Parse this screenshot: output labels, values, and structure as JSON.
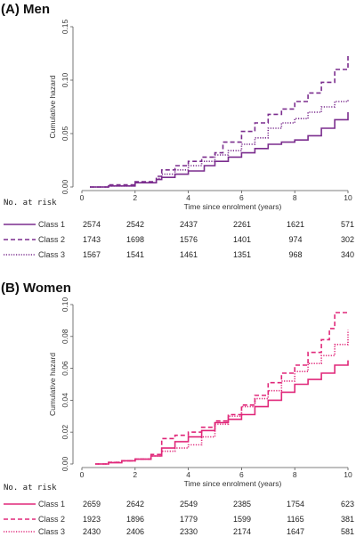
{
  "chart_data": [
    {
      "type": "line",
      "title": "(A) Men",
      "xlabel": "Time since enrolment (years)",
      "ylabel": "Cumulative hazard",
      "xlim": [
        0,
        10
      ],
      "ylim": [
        0,
        0.15
      ],
      "xticks": [
        "0",
        "2",
        "4",
        "6",
        "8",
        "10"
      ],
      "yticks": [
        "0.00",
        "0.05",
        "0.10",
        "0.15"
      ],
      "series": [
        {
          "name": "Class 1",
          "style": "solid",
          "color": "#7b2d8e",
          "points": [
            [
              0.3,
              0.0
            ],
            [
              1,
              0.001
            ],
            [
              2,
              0.004
            ],
            [
              2.8,
              0.007
            ],
            [
              3,
              0.009
            ],
            [
              3.5,
              0.012
            ],
            [
              4,
              0.015
            ],
            [
              4.6,
              0.02
            ],
            [
              5,
              0.024
            ],
            [
              5.5,
              0.028
            ],
            [
              6,
              0.032
            ],
            [
              6.5,
              0.036
            ],
            [
              7,
              0.04
            ],
            [
              7.5,
              0.042
            ],
            [
              8,
              0.044
            ],
            [
              8.5,
              0.048
            ],
            [
              9,
              0.055
            ],
            [
              9.5,
              0.063
            ],
            [
              10,
              0.07
            ]
          ]
        },
        {
          "name": "Class 2",
          "style": "dashed",
          "color": "#7b2d8e",
          "points": [
            [
              0.3,
              0.0
            ],
            [
              1,
              0.002
            ],
            [
              2,
              0.005
            ],
            [
              2.8,
              0.01
            ],
            [
              3,
              0.016
            ],
            [
              3.5,
              0.02
            ],
            [
              4,
              0.024
            ],
            [
              4.5,
              0.028
            ],
            [
              5,
              0.032
            ],
            [
              5.3,
              0.042
            ],
            [
              6,
              0.052
            ],
            [
              6.5,
              0.06
            ],
            [
              7,
              0.068
            ],
            [
              7.5,
              0.073
            ],
            [
              8,
              0.08
            ],
            [
              8.5,
              0.088
            ],
            [
              9,
              0.098
            ],
            [
              9.5,
              0.11
            ],
            [
              10,
              0.123
            ]
          ]
        },
        {
          "name": "Class 3",
          "style": "dotted",
          "color": "#7b2d8e",
          "points": [
            [
              0.3,
              0.0
            ],
            [
              1,
              0.001
            ],
            [
              2,
              0.004
            ],
            [
              2.8,
              0.008
            ],
            [
              3,
              0.012
            ],
            [
              3.5,
              0.016
            ],
            [
              4,
              0.02
            ],
            [
              4.5,
              0.024
            ],
            [
              5,
              0.03
            ],
            [
              5.5,
              0.034
            ],
            [
              6,
              0.04
            ],
            [
              6.5,
              0.046
            ],
            [
              7,
              0.055
            ],
            [
              7.5,
              0.06
            ],
            [
              8,
              0.064
            ],
            [
              8.5,
              0.07
            ],
            [
              9,
              0.075
            ],
            [
              9.5,
              0.08
            ],
            [
              10,
              0.082
            ]
          ]
        }
      ],
      "risk_table": {
        "header": "No. at risk",
        "rows": [
          {
            "label": "Class 1",
            "style": "solid",
            "values": [
              "2574",
              "2542",
              "2437",
              "2261",
              "1621",
              "571"
            ]
          },
          {
            "label": "Class 2",
            "style": "dashed",
            "values": [
              "1743",
              "1698",
              "1576",
              "1401",
              "974",
              "302"
            ]
          },
          {
            "label": "Class 3",
            "style": "dotted",
            "values": [
              "1567",
              "1541",
              "1461",
              "1351",
              "968",
              "340"
            ]
          }
        ]
      }
    },
    {
      "type": "line",
      "title": "(B) Women",
      "xlabel": "Time since enrolment (years)",
      "ylabel": "Cumulative hazard",
      "xlim": [
        0,
        10
      ],
      "ylim": [
        0,
        0.1
      ],
      "xticks": [
        "0",
        "2",
        "4",
        "6",
        "8",
        "10"
      ],
      "yticks": [
        "0.00",
        "0.02",
        "0.04",
        "0.06",
        "0.08",
        "0.10"
      ],
      "series": [
        {
          "name": "Class 1",
          "style": "solid",
          "color": "#e0287a",
          "points": [
            [
              0.5,
              0.0
            ],
            [
              1,
              0.0008
            ],
            [
              1.5,
              0.002
            ],
            [
              2,
              0.003
            ],
            [
              2.6,
              0.005
            ],
            [
              3,
              0.01
            ],
            [
              3.5,
              0.014
            ],
            [
              4,
              0.017
            ],
            [
              4.5,
              0.021
            ],
            [
              5,
              0.026
            ],
            [
              5.5,
              0.028
            ],
            [
              6,
              0.031
            ],
            [
              6.5,
              0.036
            ],
            [
              7,
              0.04
            ],
            [
              7.5,
              0.045
            ],
            [
              8,
              0.05
            ],
            [
              8.5,
              0.053
            ],
            [
              9,
              0.057
            ],
            [
              9.5,
              0.062
            ],
            [
              10,
              0.065
            ]
          ]
        },
        {
          "name": "Class 2",
          "style": "dashed",
          "color": "#e0287a",
          "points": [
            [
              0.5,
              0.0
            ],
            [
              1,
              0.001
            ],
            [
              1.5,
              0.002
            ],
            [
              2,
              0.003
            ],
            [
              2.6,
              0.006
            ],
            [
              3,
              0.016
            ],
            [
              3.5,
              0.018
            ],
            [
              4,
              0.02
            ],
            [
              4.5,
              0.023
            ],
            [
              5,
              0.027
            ],
            [
              5.5,
              0.031
            ],
            [
              6,
              0.037
            ],
            [
              6.5,
              0.043
            ],
            [
              7,
              0.051
            ],
            [
              7.5,
              0.057
            ],
            [
              8,
              0.062
            ],
            [
              8.5,
              0.07
            ],
            [
              9,
              0.078
            ],
            [
              9.3,
              0.085
            ],
            [
              9.5,
              0.095
            ],
            [
              10,
              0.095
            ]
          ]
        },
        {
          "name": "Class 3",
          "style": "dotted",
          "color": "#e0287a",
          "points": [
            [
              0.5,
              0.0
            ],
            [
              1,
              0.001
            ],
            [
              1.5,
              0.002
            ],
            [
              2,
              0.003
            ],
            [
              2.6,
              0.005
            ],
            [
              3,
              0.008
            ],
            [
              3.5,
              0.01
            ],
            [
              4,
              0.012
            ],
            [
              4.5,
              0.017
            ],
            [
              5,
              0.025
            ],
            [
              5.5,
              0.03
            ],
            [
              6,
              0.036
            ],
            [
              6.5,
              0.041
            ],
            [
              7,
              0.046
            ],
            [
              7.5,
              0.052
            ],
            [
              8,
              0.058
            ],
            [
              8.5,
              0.063
            ],
            [
              9,
              0.068
            ],
            [
              9.5,
              0.075
            ],
            [
              10,
              0.084
            ]
          ]
        }
      ],
      "risk_table": {
        "header": "No. at risk",
        "rows": [
          {
            "label": "Class 1",
            "style": "solid",
            "values": [
              "2659",
              "2642",
              "2549",
              "2385",
              "1754",
              "623"
            ]
          },
          {
            "label": "Class 2",
            "style": "dashed",
            "values": [
              "1923",
              "1896",
              "1779",
              "1599",
              "1165",
              "381"
            ]
          },
          {
            "label": "Class 3",
            "style": "dotted",
            "values": [
              "2430",
              "2406",
              "2330",
              "2174",
              "1647",
              "581"
            ]
          }
        ]
      }
    }
  ]
}
